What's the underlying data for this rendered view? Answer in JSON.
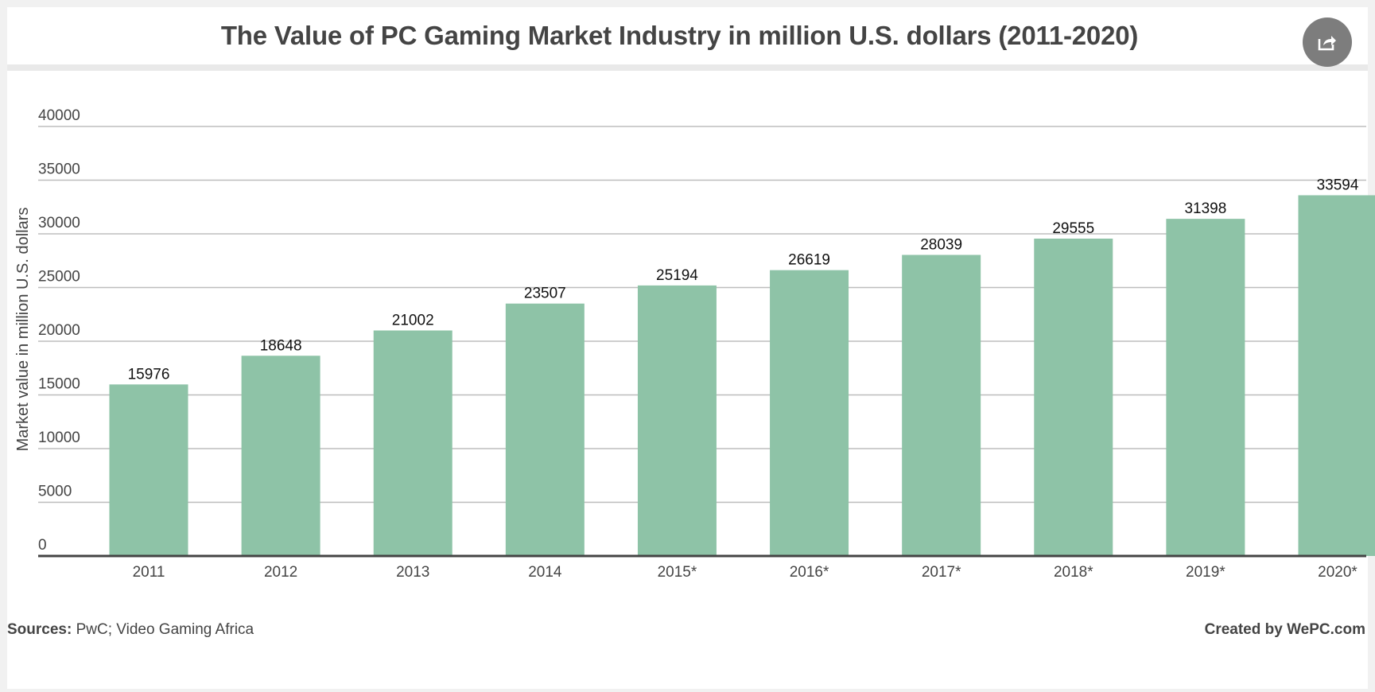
{
  "header": {
    "title": "The Value of PC Gaming Market Industry in million U.S. dollars (2011-2020)",
    "share_icon": "share-icon"
  },
  "colors": {
    "bar": "#8ec3a7",
    "grid": "#bdbdbd",
    "axis": "#444444",
    "text": "#444444"
  },
  "chart_data": {
    "type": "bar",
    "title": "The Value of PC Gaming Market Industry in million U.S. dollars (2011-2020)",
    "xlabel": "",
    "ylabel": "Market value in million U.S. dollars",
    "categories": [
      "2011",
      "2012",
      "2013",
      "2014",
      "2015*",
      "2016*",
      "2017*",
      "2018*",
      "2019*",
      "2020*"
    ],
    "values": [
      15976,
      18648,
      21002,
      23507,
      25194,
      26619,
      28039,
      29555,
      31398,
      33594
    ],
    "ylim": [
      0,
      40000
    ],
    "yticks": [
      0,
      5000,
      10000,
      15000,
      20000,
      25000,
      30000,
      35000,
      40000
    ],
    "grid": true,
    "data_labels": true
  },
  "footer": {
    "sources_label": "Sources:",
    "sources_text": " PwC; Video Gaming Africa",
    "credit": "Created by WePC.com"
  }
}
